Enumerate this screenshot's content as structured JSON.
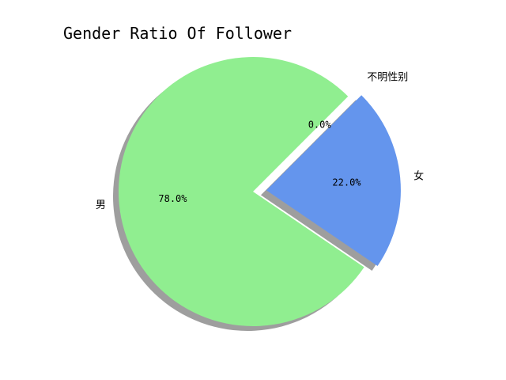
{
  "chart_data": {
    "type": "pie",
    "title": "Gender Ratio Of Follower",
    "shadow": true,
    "start_angle_deg": 45,
    "direction": "counterclockwise",
    "slices": [
      {
        "label": "男",
        "value": 78.0,
        "pct_text": "78.0%",
        "color": "#90ee90",
        "explode": 0.0
      },
      {
        "label": "女",
        "value": 22.0,
        "pct_text": "22.0%",
        "color": "#6495ed",
        "explode": 0.1
      },
      {
        "label": "不明性别",
        "value": 0.0,
        "pct_text": "0.0%",
        "color": "#ff6347",
        "explode": 0.1
      }
    ]
  }
}
